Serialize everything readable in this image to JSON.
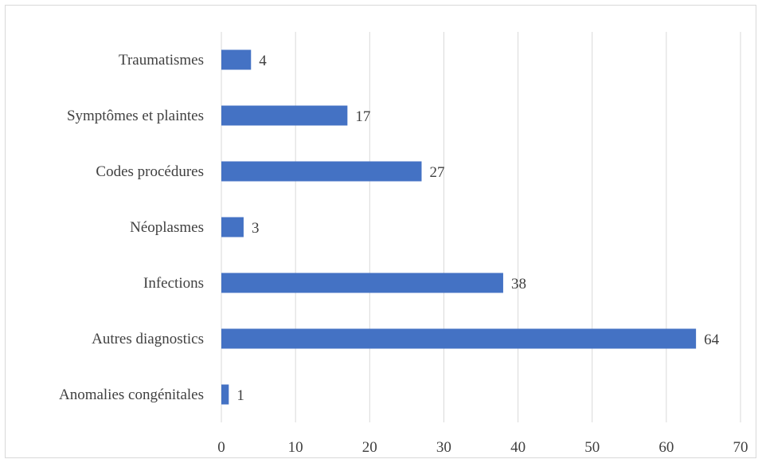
{
  "chart_data": {
    "type": "bar",
    "orientation": "horizontal",
    "title": "",
    "xlabel": "",
    "ylabel": "",
    "categories": [
      "Traumatismes",
      "Symptômes et plaintes",
      "Codes procédures",
      "Néoplasmes",
      "Infections",
      "Autres diagnostics",
      "Anomalies congénitales"
    ],
    "values": [
      4,
      17,
      27,
      3,
      38,
      64,
      1
    ],
    "xlim": [
      0,
      70
    ],
    "x_ticks": [
      0,
      10,
      20,
      30,
      40,
      50,
      60,
      70
    ],
    "grid": "vertical",
    "bar_color": "#4472c4",
    "data_labels": true
  }
}
